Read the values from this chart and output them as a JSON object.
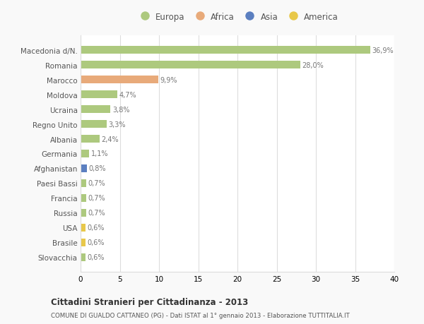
{
  "categories": [
    "Macedonia d/N.",
    "Romania",
    "Marocco",
    "Moldova",
    "Ucraina",
    "Regno Unito",
    "Albania",
    "Germania",
    "Afghanistan",
    "Paesi Bassi",
    "Francia",
    "Russia",
    "USA",
    "Brasile",
    "Slovacchia"
  ],
  "values": [
    36.9,
    28.0,
    9.9,
    4.7,
    3.8,
    3.3,
    2.4,
    1.1,
    0.8,
    0.7,
    0.7,
    0.7,
    0.6,
    0.6,
    0.6
  ],
  "labels": [
    "36,9%",
    "28,0%",
    "9,9%",
    "4,7%",
    "3,8%",
    "3,3%",
    "2,4%",
    "1,1%",
    "0,8%",
    "0,7%",
    "0,7%",
    "0,7%",
    "0,6%",
    "0,6%",
    "0,6%"
  ],
  "continent": [
    "Europa",
    "Europa",
    "Africa",
    "Europa",
    "Europa",
    "Europa",
    "Europa",
    "Europa",
    "Asia",
    "Europa",
    "Europa",
    "Europa",
    "America",
    "America",
    "Europa"
  ],
  "colors": {
    "Europa": "#adc97e",
    "Africa": "#e8aa7a",
    "Asia": "#5b7fc0",
    "America": "#e8c84a"
  },
  "xlim": [
    0,
    40
  ],
  "xticks": [
    0,
    5,
    10,
    15,
    20,
    25,
    30,
    35,
    40
  ],
  "title": "Cittadini Stranieri per Cittadinanza - 2013",
  "subtitle": "COMUNE DI GUALDO CATTANEO (PG) - Dati ISTAT al 1° gennaio 2013 - Elaborazione TUTTITALIA.IT",
  "bg_color": "#f9f9f9",
  "plot_bg_color": "#ffffff",
  "grid_color": "#dddddd",
  "text_color": "#555555",
  "label_color": "#777777"
}
